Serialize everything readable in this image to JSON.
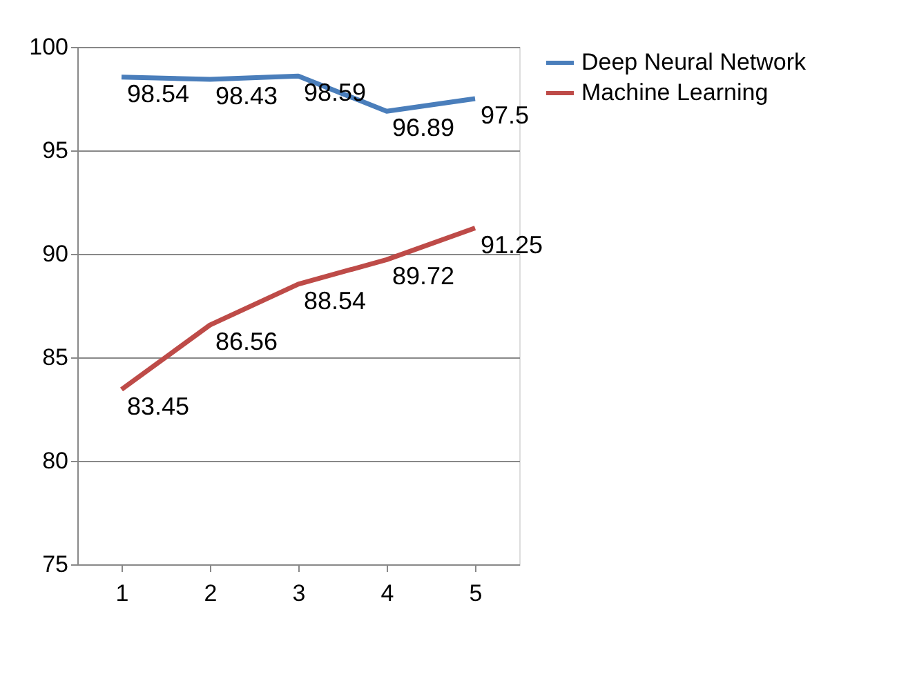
{
  "chart_data": {
    "type": "line",
    "categories": [
      "1",
      "2",
      "3",
      "4",
      "5"
    ],
    "series": [
      {
        "name": "Deep Neural Network",
        "color": "#4a7ebb",
        "values": [
          98.54,
          98.43,
          98.59,
          96.89,
          97.5
        ]
      },
      {
        "name": "Machine Learning",
        "color": "#be4b48",
        "values": [
          83.45,
          86.56,
          88.54,
          89.72,
          91.25
        ]
      }
    ],
    "ylim": [
      75,
      100
    ],
    "yticks": [
      75,
      80,
      85,
      90,
      95,
      100
    ],
    "grid": "y",
    "legend": "right",
    "data_labels": true,
    "marker": "none",
    "line_style": "solid"
  }
}
